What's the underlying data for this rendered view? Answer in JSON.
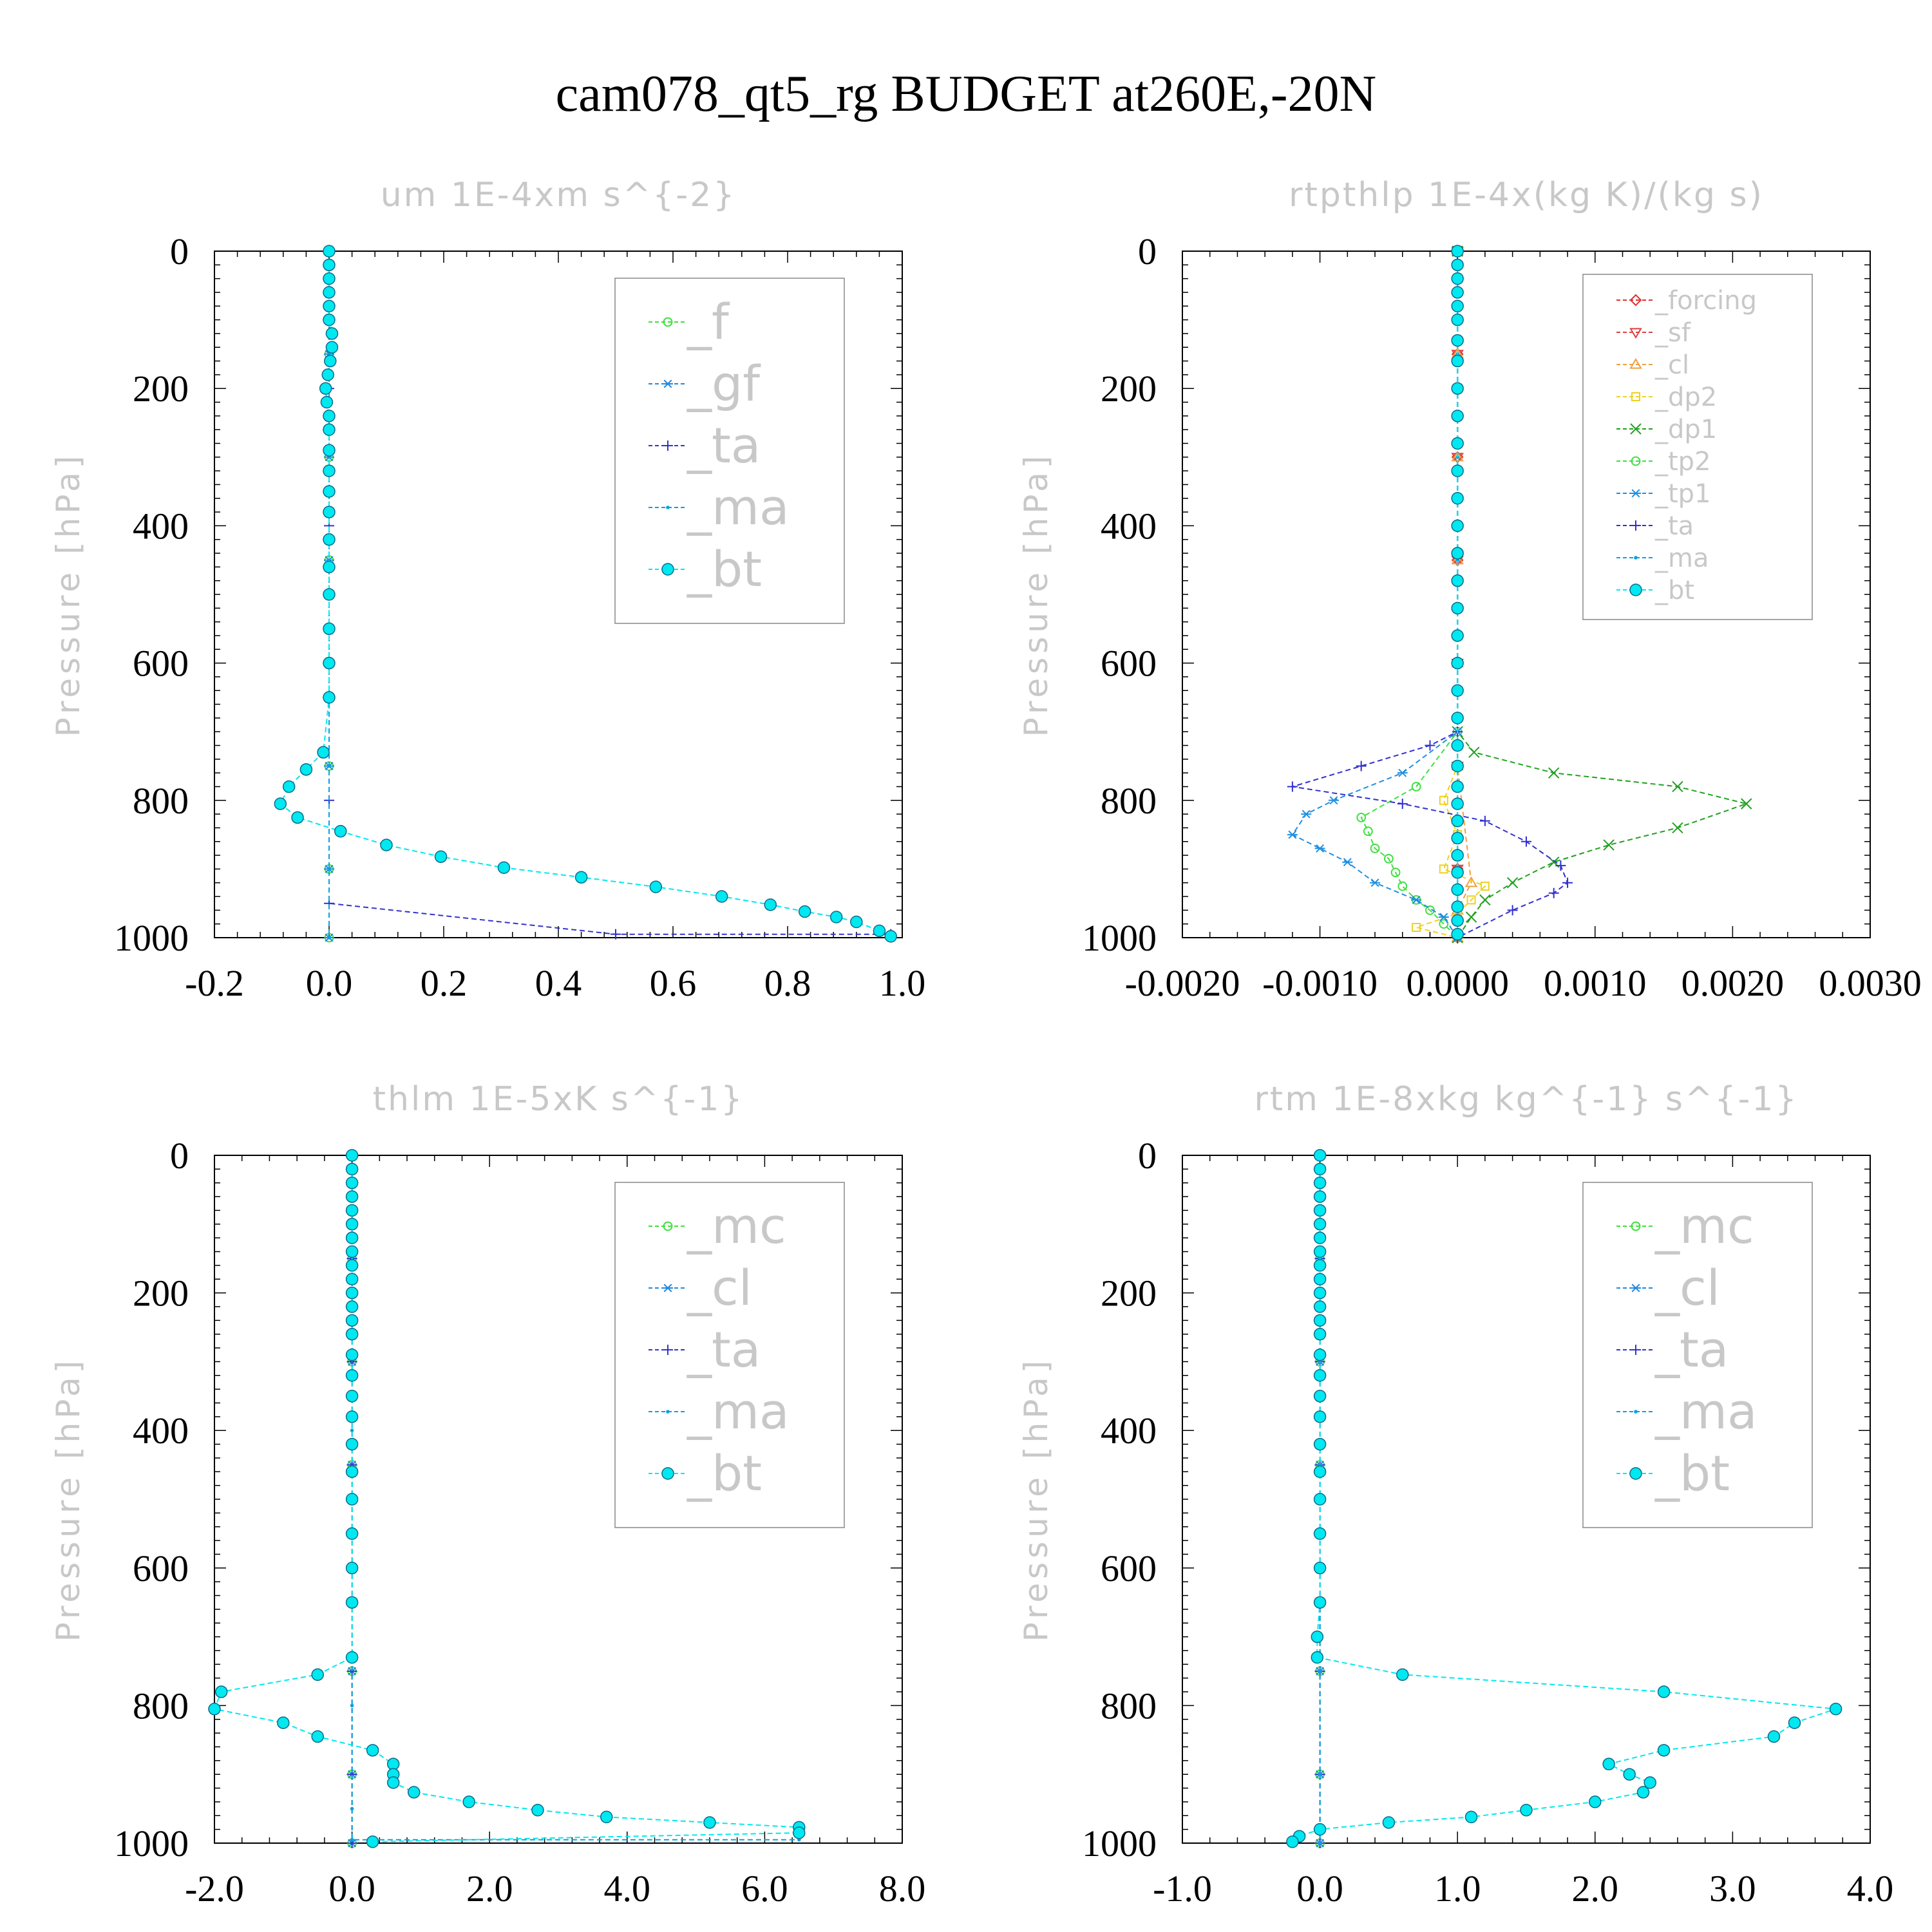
{
  "title": "cam078_qt5_rg  BUDGET at260E,-20N",
  "chart_data": [
    {
      "type": "line",
      "title": "um  1E-4xm s^{-2}",
      "ylabel": "Pressure [hPa]",
      "xlim": [
        -0.2,
        1.0
      ],
      "ylim": [
        1000,
        0
      ],
      "xticks": [
        "-0.2",
        "0.0",
        "0.2",
        "0.4",
        "0.6",
        "0.8",
        "1.0"
      ],
      "yticks": [
        "0",
        "200",
        "400",
        "600",
        "800",
        "1000"
      ],
      "legend_size": "big",
      "series": [
        {
          "name": "_f",
          "color": "#3ce03c",
          "marker": "circle",
          "x": [
            0,
            0,
            0,
            0,
            0,
            0,
            0,
            0
          ],
          "y": [
            0,
            150,
            300,
            450,
            600,
            750,
            900,
            1000
          ]
        },
        {
          "name": "_gf",
          "color": "#2288dd",
          "marker": "asterisk",
          "x": [
            0,
            0,
            0,
            0,
            0,
            0,
            0,
            0
          ],
          "y": [
            0,
            150,
            300,
            450,
            600,
            750,
            900,
            1000
          ]
        },
        {
          "name": "_ta",
          "color": "#3333cc",
          "marker": "plus",
          "x": [
            0,
            0,
            0,
            0,
            0,
            0,
            0.5,
            0.98
          ],
          "y": [
            0,
            200,
            400,
            600,
            800,
            950,
            995,
            995
          ]
        },
        {
          "name": "_ma",
          "color": "#0aa0e0",
          "marker": "dot",
          "x": [
            0,
            0,
            0,
            0,
            0,
            0,
            0,
            0
          ],
          "y": [
            0,
            150,
            300,
            450,
            600,
            750,
            900,
            1000
          ]
        },
        {
          "name": "_bt",
          "color": "#00e8f0",
          "marker": "filled-circle",
          "x": [
            0,
            0,
            0,
            0,
            0,
            0,
            0.005,
            0.005,
            0.002,
            -0.002,
            -0.006,
            -0.004,
            0,
            0,
            0,
            0,
            0,
            0,
            0,
            0,
            0,
            0,
            0,
            0,
            -0.01,
            -0.04,
            -0.07,
            -0.085,
            -0.055,
            0.02,
            0.1,
            0.195,
            0.305,
            0.44,
            0.57,
            0.685,
            0.77,
            0.83,
            0.885,
            0.92,
            0.96,
            0.98
          ],
          "y": [
            0,
            20,
            40,
            60,
            80,
            100,
            120,
            140,
            160,
            180,
            200,
            220,
            240,
            260,
            290,
            320,
            350,
            380,
            420,
            460,
            500,
            550,
            600,
            650,
            730,
            755,
            780,
            805,
            825,
            845,
            865,
            882,
            898,
            912,
            926,
            940,
            952,
            962,
            970,
            977,
            990,
            998
          ]
        }
      ]
    },
    {
      "type": "line",
      "title": "rtpthlp  1E-4x(kg K)/(kg s)",
      "ylabel": "Pressure [hPa]",
      "xlim": [
        -0.002,
        0.003
      ],
      "ylim": [
        1000,
        0
      ],
      "xticks": [
        "-0.0020",
        "-0.0010",
        "0.0000",
        "0.0010",
        "0.0020",
        "0.0030"
      ],
      "yticks": [
        "0",
        "200",
        "400",
        "600",
        "800",
        "1000"
      ],
      "legend_size": "small",
      "series": [
        {
          "name": "_forcing",
          "color": "#e03030",
          "marker": "diamond",
          "x": [
            0,
            0,
            0,
            0,
            0,
            0,
            0,
            0
          ],
          "y": [
            0,
            150,
            300,
            450,
            600,
            750,
            900,
            1000
          ]
        },
        {
          "name": "_sf",
          "color": "#e04040",
          "marker": "triangle-down",
          "x": [
            0,
            0,
            0,
            0,
            0,
            0,
            0,
            0
          ],
          "y": [
            0,
            150,
            300,
            450,
            600,
            750,
            900,
            1000
          ]
        },
        {
          "name": "_cl",
          "color": "#f0a040",
          "marker": "triangle-up",
          "x": [
            0,
            0,
            0,
            0,
            0,
            0,
            0.0001,
            0,
            0
          ],
          "y": [
            0,
            150,
            300,
            450,
            600,
            750,
            920,
            960,
            1000
          ]
        },
        {
          "name": "_dp2",
          "color": "#f0d020",
          "marker": "square",
          "x": [
            0,
            0,
            0,
            0,
            0,
            -0.0001,
            0,
            -0.0001,
            0.0002,
            0.0001,
            0,
            -0.0003,
            0
          ],
          "y": [
            0,
            200,
            400,
            600,
            750,
            800,
            850,
            900,
            925,
            945,
            965,
            985,
            1000
          ]
        },
        {
          "name": "_dp1",
          "color": "#20a020",
          "marker": "x",
          "x": [
            0,
            0,
            0.00012,
            0.0007,
            0.0016,
            0.0021,
            0.0016,
            0.0011,
            0.0007,
            0.0004,
            0.0002,
            0.0001,
            0
          ],
          "y": [
            0,
            700,
            730,
            760,
            780,
            805,
            840,
            865,
            890,
            920,
            945,
            970,
            1000
          ]
        },
        {
          "name": "_tp2",
          "color": "#40e040",
          "marker": "circle",
          "x": [
            0,
            0,
            -0.0003,
            -0.0007,
            -0.00065,
            -0.0006,
            -0.0005,
            -0.00045,
            -0.0004,
            -0.0003,
            -0.0002,
            -0.0001,
            0
          ],
          "y": [
            0,
            700,
            780,
            825,
            845,
            870,
            885,
            905,
            925,
            945,
            960,
            980,
            1000
          ]
        },
        {
          "name": "_tp1",
          "color": "#2090e0",
          "marker": "asterisk",
          "x": [
            0,
            0,
            -0.0004,
            -0.0009,
            -0.0011,
            -0.0012,
            -0.001,
            -0.0008,
            -0.0006,
            -0.0003,
            -0.0001,
            0
          ],
          "y": [
            0,
            700,
            760,
            800,
            820,
            850,
            870,
            890,
            920,
            945,
            970,
            1000
          ]
        },
        {
          "name": "_ta",
          "color": "#3030d0",
          "marker": "plus",
          "x": [
            0,
            0,
            -0.0002,
            -0.0007,
            -0.0012,
            -0.0004,
            0.0002,
            0.0005,
            0.00075,
            0.0008,
            0.0007,
            0.0004,
            0
          ],
          "y": [
            0,
            700,
            720,
            750,
            780,
            805,
            830,
            860,
            895,
            920,
            935,
            960,
            1000
          ]
        },
        {
          "name": "_ma",
          "color": "#0aa0e0",
          "marker": "dot",
          "x": [
            0,
            0,
            0,
            0,
            0,
            0,
            0,
            0
          ],
          "y": [
            0,
            150,
            300,
            450,
            600,
            750,
            900,
            1000
          ]
        },
        {
          "name": "_bt",
          "color": "#00e8f0",
          "marker": "filled-circle",
          "x": [
            0,
            0,
            0,
            0,
            0,
            0,
            0,
            0,
            0,
            0,
            0,
            0,
            0,
            0,
            0,
            0,
            0,
            0,
            0,
            0,
            0,
            0,
            0,
            0,
            0,
            0,
            0,
            0,
            0,
            0,
            0,
            0,
            0
          ],
          "y": [
            0,
            20,
            40,
            60,
            80,
            100,
            130,
            160,
            200,
            240,
            280,
            320,
            360,
            400,
            440,
            480,
            520,
            560,
            600,
            640,
            680,
            720,
            750,
            780,
            805,
            830,
            855,
            880,
            905,
            930,
            955,
            975,
            995
          ]
        }
      ]
    },
    {
      "type": "line",
      "title": "thlm  1E-5xK s^{-1}",
      "ylabel": "Pressure [hPa]",
      "xlim": [
        -2.0,
        8.0
      ],
      "ylim": [
        1000,
        0
      ],
      "xticks": [
        "-2.0",
        "0.0",
        "2.0",
        "4.0",
        "6.0",
        "8.0"
      ],
      "yticks": [
        "0",
        "200",
        "400",
        "600",
        "800",
        "1000"
      ],
      "legend_size": "big",
      "series": [
        {
          "name": "_mc",
          "color": "#3ce03c",
          "marker": "circle",
          "x": [
            0,
            0,
            0,
            0,
            0,
            0,
            0,
            0
          ],
          "y": [
            0,
            150,
            300,
            450,
            600,
            750,
            900,
            1000
          ]
        },
        {
          "name": "_cl",
          "color": "#2288dd",
          "marker": "asterisk",
          "x": [
            0,
            0,
            0,
            0,
            0,
            0,
            0,
            0
          ],
          "y": [
            0,
            150,
            300,
            450,
            600,
            750,
            900,
            1000
          ]
        },
        {
          "name": "_ta",
          "color": "#3333cc",
          "marker": "plus",
          "x": [
            0,
            0,
            0,
            0,
            0,
            0,
            0,
            0
          ],
          "y": [
            0,
            150,
            300,
            450,
            600,
            750,
            900,
            1000
          ]
        },
        {
          "name": "_ma",
          "color": "#0aa0e0",
          "marker": "dot",
          "x": [
            0,
            0,
            0,
            0,
            0,
            0,
            0,
            6.5
          ],
          "y": [
            0,
            200,
            400,
            600,
            800,
            950,
            995,
            995
          ]
        },
        {
          "name": "_bt",
          "color": "#00e8f0",
          "marker": "filled-circle",
          "x": [
            0,
            0,
            0,
            0,
            0,
            0,
            0,
            0,
            0,
            0,
            0,
            0,
            0,
            0,
            0,
            0,
            0,
            0,
            0,
            0,
            0,
            0,
            0,
            0,
            0,
            -0.5,
            -1.9,
            -2.0,
            -1.0,
            -0.5,
            0.3,
            0.6,
            0.6,
            0.6,
            0.9,
            1.7,
            2.7,
            3.7,
            5.2,
            6.5,
            6.5,
            0.3
          ],
          "y": [
            0,
            20,
            40,
            60,
            80,
            100,
            120,
            140,
            160,
            180,
            200,
            220,
            240,
            260,
            290,
            320,
            350,
            380,
            420,
            460,
            500,
            550,
            600,
            650,
            730,
            755,
            780,
            805,
            825,
            845,
            865,
            885,
            900,
            912,
            926,
            940,
            952,
            962,
            970,
            977,
            985,
            998
          ]
        }
      ]
    },
    {
      "type": "line",
      "title": "rtm  1E-8xkg kg^{-1} s^{-1}",
      "ylabel": "Pressure [hPa]",
      "xlim": [
        -1.0,
        4.0
      ],
      "ylim": [
        1000,
        0
      ],
      "xticks": [
        "-1.0",
        "0.0",
        "1.0",
        "2.0",
        "3.0",
        "4.0"
      ],
      "yticks": [
        "0",
        "200",
        "400",
        "600",
        "800",
        "1000"
      ],
      "legend_size": "big",
      "series": [
        {
          "name": "_mc",
          "color": "#3ce03c",
          "marker": "circle",
          "x": [
            0,
            0,
            0,
            0,
            0,
            0,
            0,
            0
          ],
          "y": [
            0,
            150,
            300,
            450,
            600,
            750,
            900,
            1000
          ]
        },
        {
          "name": "_cl",
          "color": "#2288dd",
          "marker": "asterisk",
          "x": [
            0,
            0,
            0,
            0,
            0,
            0,
            0,
            0
          ],
          "y": [
            0,
            150,
            300,
            450,
            600,
            750,
            900,
            1000
          ]
        },
        {
          "name": "_ta",
          "color": "#3333cc",
          "marker": "plus",
          "x": [
            0,
            0,
            0,
            0,
            0,
            0,
            0,
            0
          ],
          "y": [
            0,
            150,
            300,
            450,
            600,
            750,
            900,
            1000
          ]
        },
        {
          "name": "_ma",
          "color": "#0aa0e0",
          "marker": "dot",
          "x": [
            0,
            0,
            0,
            0,
            0,
            0,
            0,
            0
          ],
          "y": [
            0,
            150,
            300,
            450,
            600,
            750,
            900,
            1000
          ]
        },
        {
          "name": "_bt",
          "color": "#00e8f0",
          "marker": "filled-circle",
          "x": [
            0,
            0,
            0,
            0,
            0,
            0,
            0,
            0,
            0,
            0,
            0,
            0,
            0,
            0,
            0,
            0,
            0,
            0,
            0,
            0,
            0,
            0,
            0,
            0,
            -0.02,
            -0.02,
            0.6,
            2.5,
            3.75,
            3.45,
            3.3,
            2.5,
            2.1,
            2.25,
            2.4,
            2.35,
            2.0,
            1.5,
            1.1,
            0.5,
            0.0,
            -0.15,
            -0.2
          ],
          "y": [
            0,
            20,
            40,
            60,
            80,
            100,
            120,
            140,
            160,
            180,
            200,
            220,
            240,
            260,
            290,
            320,
            350,
            380,
            420,
            460,
            500,
            550,
            600,
            650,
            700,
            730,
            755,
            780,
            805,
            825,
            845,
            865,
            885,
            900,
            912,
            926,
            940,
            952,
            962,
            970,
            980,
            990,
            998
          ]
        }
      ]
    }
  ]
}
